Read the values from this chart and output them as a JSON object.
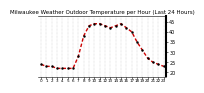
{
  "title": "Milwaukee Weather Outdoor Temperature per Hour (Last 24 Hours)",
  "hours": [
    0,
    1,
    2,
    3,
    4,
    5,
    6,
    7,
    8,
    9,
    10,
    11,
    12,
    13,
    14,
    15,
    16,
    17,
    18,
    19,
    20,
    21,
    22,
    23
  ],
  "temps": [
    24,
    23,
    23,
    22,
    22,
    22,
    22,
    28,
    38,
    43,
    44,
    44,
    43,
    42,
    43,
    44,
    42,
    40,
    35,
    31,
    27,
    25,
    24,
    23
  ],
  "line_color": "#cc0000",
  "dot_color": "#000000",
  "background_color": "#ffffff",
  "grid_color": "#aaaaaa",
  "ylim": [
    18,
    48
  ],
  "yticks": [
    20,
    25,
    30,
    35,
    40,
    45
  ],
  "ytick_labels": [
    "20",
    "25",
    "30",
    "35",
    "40",
    "45"
  ],
  "ylabel_fontsize": 3.5,
  "title_fontsize": 4.0,
  "xlabel_fontsize": 3.0,
  "linewidth": 1.0,
  "markersize": 1.5
}
